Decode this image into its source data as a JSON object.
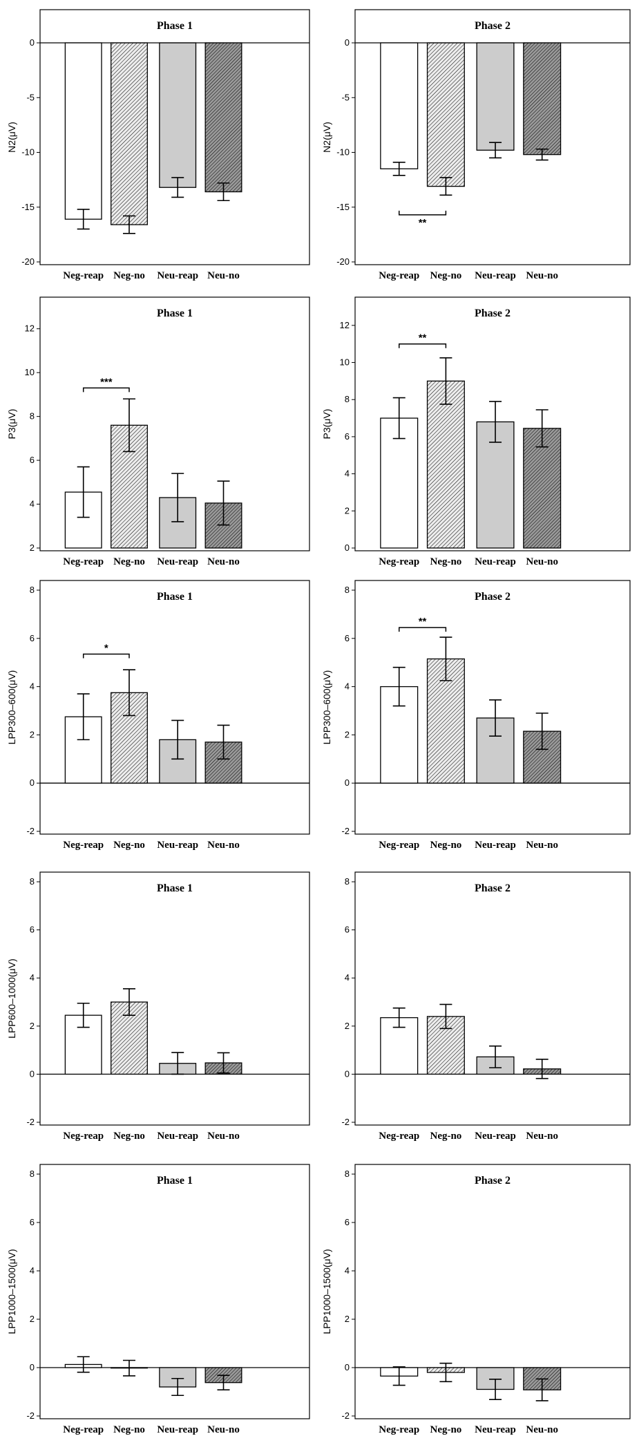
{
  "figure": {
    "categories": [
      "Neg-reap",
      "Neg-no",
      "Neu-reap",
      "Neu-no"
    ],
    "bar_styles": [
      "white",
      "hatch-light",
      "gray",
      "hatch-dark"
    ],
    "colors": {
      "white": "#ffffff",
      "gray": "#cccccc",
      "hatch_light_bg": "#ececec",
      "hatch_dark_bg": "#999999",
      "stroke": "#000000"
    }
  },
  "chart_data": [
    {
      "type": "bar",
      "title": "Phase 1",
      "ylabel": "N2(μV)",
      "ylim": [
        -20,
        0
      ],
      "yticks": [
        0,
        -5,
        -10,
        -15,
        -20
      ],
      "values": [
        -16.1,
        -16.6,
        -13.2,
        -13.6
      ],
      "errors": [
        0.9,
        0.8,
        0.9,
        0.8
      ],
      "significance": []
    },
    {
      "type": "bar",
      "title": "Phase 2",
      "ylabel": "N2(μV)",
      "ylim": [
        -20,
        0
      ],
      "yticks": [
        0,
        -5,
        -10,
        -15,
        -20
      ],
      "values": [
        -11.5,
        -13.1,
        -9.8,
        -10.2
      ],
      "errors": [
        0.6,
        0.8,
        0.7,
        0.5
      ],
      "significance": [
        {
          "from": 0,
          "to": 1,
          "label": "**",
          "y": -15.7
        }
      ]
    },
    {
      "type": "bar",
      "title": "Phase 1",
      "ylabel": "P3(μV)",
      "ylim": [
        2,
        13
      ],
      "yticks": [
        2,
        4,
        6,
        8,
        10,
        12
      ],
      "values": [
        4.55,
        7.6,
        4.3,
        4.05
      ],
      "errors": [
        1.15,
        1.2,
        1.1,
        1.0
      ],
      "significance": [
        {
          "from": 0,
          "to": 1,
          "label": "***",
          "y": 9.3
        }
      ]
    },
    {
      "type": "bar",
      "title": "Phase 2",
      "ylabel": "P3(μV)",
      "ylim": [
        0,
        13
      ],
      "yticks": [
        0,
        2,
        4,
        6,
        8,
        10,
        12
      ],
      "values": [
        7.0,
        9.0,
        6.8,
        6.45
      ],
      "errors": [
        1.1,
        1.25,
        1.1,
        1.0
      ],
      "significance": [
        {
          "from": 0,
          "to": 1,
          "label": "**",
          "y": 11.0
        }
      ]
    },
    {
      "type": "bar",
      "title": "Phase 1",
      "ylabel": "LPP300–600(μV)",
      "ylim": [
        -2,
        8
      ],
      "yticks": [
        -2,
        0,
        2,
        4,
        6,
        8
      ],
      "values": [
        2.75,
        3.75,
        1.8,
        1.7
      ],
      "errors": [
        0.95,
        0.95,
        0.8,
        0.7
      ],
      "significance": [
        {
          "from": 0,
          "to": 1,
          "label": "*",
          "y": 5.35
        }
      ]
    },
    {
      "type": "bar",
      "title": "Phase 2",
      "ylabel": "LPP300–600(μV)",
      "ylim": [
        -2,
        8
      ],
      "yticks": [
        -2,
        0,
        2,
        4,
        6,
        8
      ],
      "values": [
        4.0,
        5.15,
        2.7,
        2.15
      ],
      "errors": [
        0.8,
        0.9,
        0.75,
        0.75
      ],
      "significance": [
        {
          "from": 0,
          "to": 1,
          "label": "**",
          "y": 6.45
        }
      ]
    },
    {
      "type": "bar",
      "title": "Phase 1",
      "ylabel": "LPP600–1000(μV)",
      "ylim": [
        -2,
        8
      ],
      "yticks": [
        -2,
        0,
        2,
        4,
        6,
        8
      ],
      "values": [
        2.45,
        3.0,
        0.45,
        0.47
      ],
      "errors": [
        0.5,
        0.55,
        0.45,
        0.42
      ],
      "significance": []
    },
    {
      "type": "bar",
      "title": "Phase 2",
      "ylabel": "",
      "ylim": [
        -2,
        8
      ],
      "yticks": [
        -2,
        0,
        2,
        4,
        6,
        8
      ],
      "values": [
        2.35,
        2.4,
        0.72,
        0.22
      ],
      "errors": [
        0.4,
        0.5,
        0.45,
        0.4
      ],
      "significance": []
    },
    {
      "type": "bar",
      "title": "Phase 1",
      "ylabel": "LPP1000–1500(μV)",
      "ylim": [
        -2,
        8
      ],
      "yticks": [
        -2,
        0,
        2,
        4,
        6,
        8
      ],
      "values": [
        0.13,
        -0.02,
        -0.8,
        -0.62
      ],
      "errors": [
        0.32,
        0.32,
        0.35,
        0.3
      ],
      "significance": []
    },
    {
      "type": "bar",
      "title": "Phase 2",
      "ylabel": "LPP1000–1500(μV)",
      "ylim": [
        -2,
        8
      ],
      "yticks": [
        -2,
        0,
        2,
        4,
        6,
        8
      ],
      "values": [
        -0.35,
        -0.2,
        -0.9,
        -0.92
      ],
      "errors": [
        0.38,
        0.38,
        0.42,
        0.45
      ],
      "significance": []
    }
  ]
}
